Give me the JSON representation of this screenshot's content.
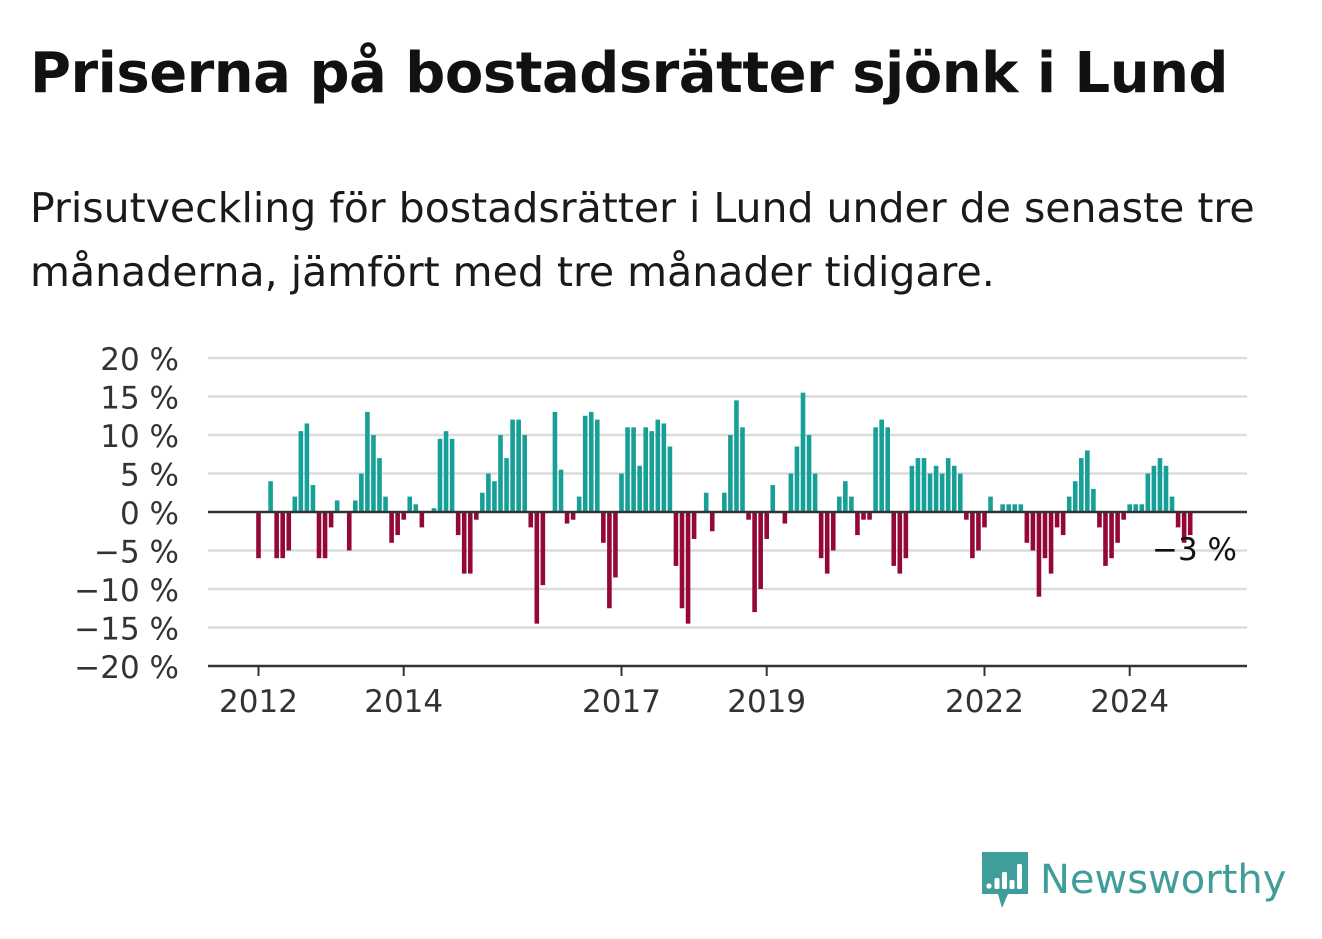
{
  "title": "Priserna på bostadsrätter sjönk i Lund",
  "subtitle": "Prisutveckling för bostadsrätter i Lund under de senaste tre månaderna, jämfört med tre månader tidigare.",
  "brand": "Newsworthy",
  "colors": {
    "positive": "#17a098",
    "negative": "#930838",
    "grid": "#dcdcdc",
    "axis": "#333333",
    "brand": "#3f9e99"
  },
  "chart_data": {
    "type": "bar",
    "title": "Priserna på bostadsrätter sjönk i Lund",
    "subtitle": "Prisutveckling för bostadsrätter i Lund under de senaste tre månaderna, jämfört med tre månader tidigare.",
    "x_start": "2012-01",
    "ylim": [
      -20,
      20
    ],
    "y_ticks": [
      20,
      15,
      10,
      5,
      0,
      -5,
      -10,
      -15,
      -20
    ],
    "y_tick_labels": [
      "20 %",
      "15 %",
      "10 %",
      "5 %",
      "0 %",
      "−5 %",
      "−10 %",
      "−15 %",
      "−20 %"
    ],
    "x_ticks": [
      "2012",
      "2014",
      "2017",
      "2019",
      "2022",
      "2024"
    ],
    "end_label": "−3 %",
    "grid": true,
    "values": [
      -6,
      0,
      4,
      -6,
      -6,
      -5,
      2,
      10.5,
      11.5,
      3.5,
      -6,
      -6,
      -2,
      1.5,
      0,
      -5,
      1.5,
      5,
      13,
      10,
      7,
      2,
      -4,
      -3,
      -1,
      2,
      1,
      -2,
      0,
      0.5,
      9.5,
      10.5,
      9.5,
      -3,
      -8,
      -8,
      -1,
      2.5,
      5,
      4,
      10,
      7,
      12,
      12,
      10,
      -2,
      -14.5,
      -9.5,
      0,
      13,
      5.5,
      -1.5,
      -1,
      2,
      12.5,
      13,
      12,
      -4,
      -12.5,
      -8.5,
      5,
      11,
      11,
      6,
      11,
      10.5,
      12,
      11.5,
      8.5,
      -7,
      -12.5,
      -14.5,
      -3.5,
      0,
      2.5,
      -2.5,
      0,
      2.5,
      10,
      14.5,
      11,
      -1,
      -13,
      -10,
      -3.5,
      3.5,
      0,
      -1.5,
      5,
      8.5,
      15.5,
      10,
      5,
      -6,
      -8,
      -5,
      2,
      4,
      2,
      -3,
      -1,
      -1,
      11,
      12,
      11,
      -7,
      -8,
      -6,
      6,
      7,
      7,
      5,
      6,
      5,
      7,
      6,
      5,
      -1,
      -6,
      -5,
      -2,
      2,
      0,
      1,
      1,
      1,
      1,
      -4,
      -5,
      -11,
      -6,
      -8,
      -2,
      -3,
      2,
      4,
      7,
      8,
      3,
      -2,
      -7,
      -6,
      -4,
      -1,
      1,
      1,
      1,
      5,
      6,
      7,
      6,
      2,
      -2,
      -4,
      -3
    ]
  }
}
